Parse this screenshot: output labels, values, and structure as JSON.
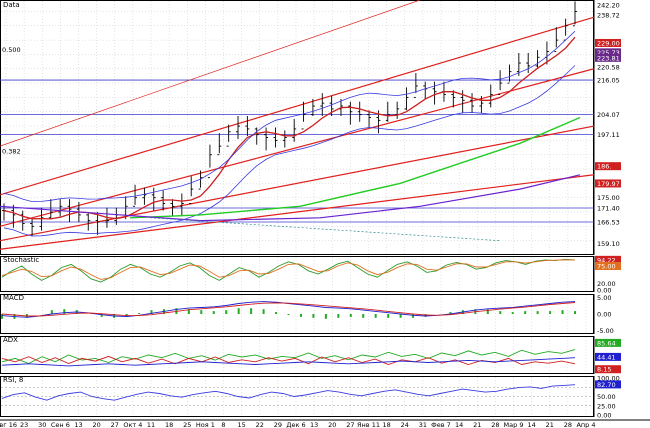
{
  "panels": {
    "price": {
      "title": "Data"
    },
    "stochastic": {
      "title": "Stochastic"
    },
    "macd": {
      "title": "MACD"
    },
    "adx": {
      "title": "ADX"
    },
    "rsi": {
      "title": "RSI, 8"
    }
  },
  "colors": {
    "background": "#ffffff",
    "grid": "#c8c8c8",
    "bars": "#000000",
    "trend_channel": "#e0201c",
    "ma_short": "#cc2020",
    "ma_long": "#22cc22",
    "ma_longest": "#6a22d0",
    "bollinger": "#3a3ae0",
    "horizontal_levels": "#3c3ccc",
    "stoch_k": "#2a9a2a",
    "stoch_d": "#e07020",
    "macd_line": "#2020d0",
    "macd_signal": "#d02020",
    "macd_hist": "#22aa22",
    "adx_pos": "#22aa22",
    "adx_neg": "#d02020",
    "adx_line": "#2020d0",
    "rsi_line": "#3a3ae0"
  },
  "chart_data": {
    "type": "line",
    "x": [
      "Авг 16",
      "23",
      "30",
      "Сен 6",
      "13",
      "20",
      "27",
      "Окт 4",
      "11",
      "18",
      "25",
      "Ноя 1",
      "8",
      "15",
      "22",
      "29",
      "Дек 6",
      "13",
      "20",
      "27",
      "Янв 11",
      "18",
      "24",
      "31",
      "Фев 7",
      "14",
      "21",
      "28",
      "Мар 9",
      "14",
      "21",
      "28",
      "Апр 4"
    ],
    "ylim": [
      155,
      244
    ],
    "price_close": [
      170.5,
      169,
      166,
      165,
      168,
      170,
      172,
      171,
      169,
      167,
      166.5,
      167,
      169,
      172,
      175,
      176,
      175,
      173,
      172,
      173,
      178,
      182,
      190,
      193,
      198,
      200,
      199,
      197,
      196,
      195,
      196,
      199,
      204,
      207,
      208,
      206,
      207,
      205,
      204,
      203,
      202,
      204,
      206,
      210,
      214,
      213,
      212,
      211,
      210,
      209,
      207,
      208,
      211,
      215,
      219,
      222,
      221,
      224,
      226,
      230,
      235,
      240
    ],
    "price_axis_labels": [
      "242.20",
      "238.72",
      "229.00",
      "225.73",
      "223.81",
      "220.58",
      "216.05",
      "204.07",
      "197.11",
      "186.",
      "179.97",
      "175.00",
      "171.40",
      "166.53",
      "159.10"
    ],
    "level_marks": [
      "0.500",
      "0.382"
    ],
    "stochastic": {
      "axis_labels": [
        "94.22",
        "75.00",
        "20.00",
        "0.00"
      ],
      "k": [
        40,
        60,
        75,
        50,
        30,
        45,
        70,
        80,
        60,
        35,
        25,
        40,
        65,
        80,
        70,
        50,
        40,
        55,
        75,
        85,
        70,
        45,
        30,
        50,
        70,
        60,
        40,
        55,
        75,
        88,
        80,
        60,
        50,
        65,
        82,
        90,
        70,
        50,
        40,
        60,
        80,
        88,
        75,
        55,
        60,
        78,
        86,
        80,
        65,
        70,
        85,
        92,
        88,
        80,
        90,
        94,
        92,
        96,
        94
      ],
      "d": [
        45,
        55,
        65,
        58,
        42,
        44,
        60,
        72,
        65,
        48,
        33,
        38,
        55,
        70,
        72,
        60,
        48,
        52,
        65,
        78,
        75,
        58,
        40,
        45,
        60,
        62,
        50,
        52,
        65,
        80,
        82,
        70,
        58,
        60,
        75,
        85,
        78,
        60,
        48,
        55,
        70,
        82,
        80,
        65,
        62,
        72,
        82,
        82,
        72,
        72,
        80,
        88,
        88,
        84,
        88,
        92,
        93,
        94,
        94
      ]
    },
    "macd": {
      "axis_labels": [
        "5.00",
        "0.00",
        "-5.00"
      ],
      "macd": [
        -0.5,
        -0.8,
        -1,
        -0.6,
        0,
        0.4,
        0.6,
        0.3,
        -0.2,
        -0.6,
        -0.8,
        -0.4,
        0.2,
        0.8,
        1.4,
        1.8,
        2,
        2.2,
        2.6,
        3.2,
        3.6,
        3.8,
        3.6,
        3.2,
        2.8,
        2.4,
        2,
        1.8,
        1.6,
        1.2,
        0.8,
        0.4,
        0,
        -0.4,
        -0.6,
        -0.4,
        0,
        0.6,
        1.2,
        1.6,
        1.8,
        2,
        2.4,
        2.8,
        3.2,
        3.6,
        3.8
      ],
      "signal": [
        0,
        -0.3,
        -0.6,
        -0.6,
        -0.4,
        -0.1,
        0.2,
        0.3,
        0.1,
        -0.2,
        -0.5,
        -0.5,
        -0.2,
        0.3,
        0.8,
        1.3,
        1.6,
        1.9,
        2.2,
        2.6,
        3,
        3.3,
        3.4,
        3.3,
        3.1,
        2.8,
        2.5,
        2.2,
        1.9,
        1.6,
        1.2,
        0.8,
        0.4,
        0,
        -0.3,
        -0.4,
        -0.2,
        0.2,
        0.7,
        1.1,
        1.5,
        1.8,
        2.1,
        2.5,
        2.9,
        3.2,
        3.5
      ]
    },
    "adx": {
      "axis_labels": [
        "85.64",
        "44.41",
        "8.15"
      ],
      "di_plus": [
        30,
        40,
        25,
        45,
        30,
        50,
        35,
        40,
        28,
        45,
        38,
        50,
        42,
        55,
        40,
        48,
        35,
        52,
        44,
        50,
        38,
        46,
        42,
        56,
        40,
        48,
        36,
        50,
        44,
        58,
        46,
        52,
        40,
        56,
        48,
        62,
        50,
        58,
        46,
        64,
        52,
        60,
        55,
        66
      ],
      "di_minus": [
        40,
        30,
        45,
        28,
        42,
        25,
        40,
        32,
        46,
        30,
        40,
        26,
        38,
        24,
        40,
        30,
        44,
        28,
        36,
        30,
        42,
        32,
        40,
        24,
        44,
        30,
        42,
        28,
        38,
        22,
        36,
        30,
        42,
        26,
        36,
        22,
        34,
        28,
        40,
        22,
        30,
        26,
        32,
        24
      ],
      "adx": [
        20,
        22,
        24,
        22,
        20,
        18,
        20,
        22,
        24,
        22,
        20,
        22,
        24,
        26,
        28,
        30,
        28,
        26,
        24,
        22,
        24,
        26,
        28,
        30,
        28,
        26,
        24,
        26,
        28,
        30,
        32,
        30,
        28,
        30,
        32,
        34,
        32,
        30,
        32,
        34,
        36,
        38,
        40,
        42
      ]
    },
    "rsi": {
      "axis_labels": [
        "100.00",
        "82.70",
        "50.00",
        "25.00",
        "0.00"
      ],
      "values": [
        45,
        55,
        60,
        48,
        40,
        52,
        58,
        62,
        50,
        44,
        40,
        48,
        56,
        62,
        58,
        52,
        48,
        55,
        60,
        64,
        58,
        50,
        46,
        55,
        62,
        58,
        50,
        54,
        60,
        66,
        62,
        56,
        52,
        58,
        64,
        68,
        62,
        56,
        52,
        58,
        64,
        70,
        66,
        62,
        64,
        70,
        74,
        76,
        72,
        78,
        80,
        82
      ]
    }
  }
}
